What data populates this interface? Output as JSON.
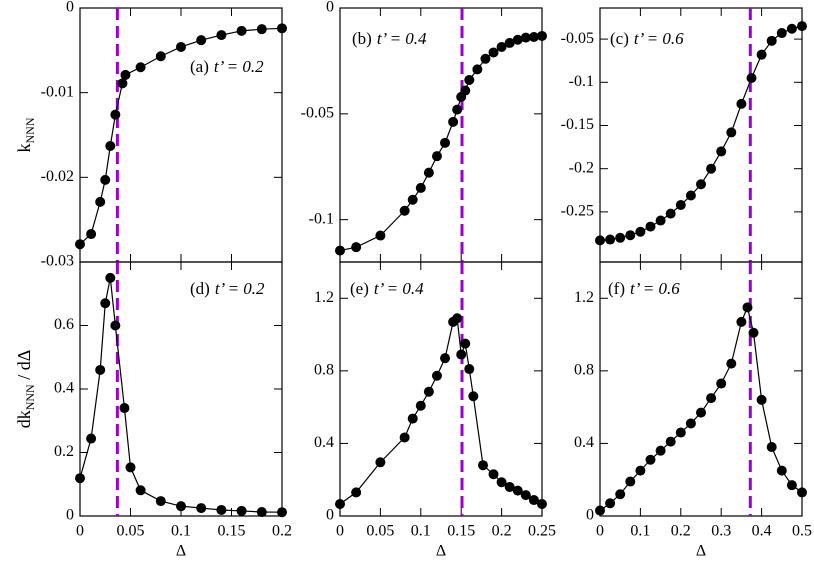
{
  "chart_data": [
    {
      "type": "line",
      "label": "(a)",
      "annotation": "t’ = 0.2",
      "ylabel": [
        "k",
        "NNN"
      ],
      "xlim": [
        0,
        0.2
      ],
      "xticks": [
        0,
        0.05,
        0.1,
        0.15,
        0.2
      ],
      "ylim": [
        -0.03,
        0
      ],
      "yticks": [
        0,
        -0.01,
        -0.02,
        -0.03
      ],
      "vline": 0.037,
      "vline_color": "#9b00d3",
      "x": [
        0,
        0.011,
        0.02,
        0.025,
        0.03,
        0.035,
        0.042,
        0.045,
        0.06,
        0.08,
        0.1,
        0.12,
        0.14,
        0.16,
        0.18,
        0.2
      ],
      "series": [
        {
          "color": "#000000",
          "values": [
            -0.0279,
            -0.0267,
            -0.0229,
            -0.0203,
            -0.0163,
            -0.0126,
            -0.0089,
            -0.0079,
            -0.007,
            -0.0057,
            -0.0046,
            -0.0038,
            -0.0032,
            -0.0027,
            -0.0025,
            -0.0024
          ]
        }
      ]
    },
    {
      "type": "line",
      "label": "(b)",
      "annotation": "t’ = 0.4",
      "xlim": [
        0,
        0.25
      ],
      "xticks": [
        0,
        0.05,
        0.1,
        0.15,
        0.2,
        0.25
      ],
      "ylim": [
        -0.12,
        0
      ],
      "yticks": [
        0,
        -0.05,
        -0.1
      ],
      "vline": 0.151,
      "vline_color": "#9b00d3",
      "x": [
        0,
        0.02,
        0.05,
        0.08,
        0.09,
        0.1,
        0.11,
        0.12,
        0.13,
        0.14,
        0.145,
        0.15,
        0.155,
        0.16,
        0.17,
        0.18,
        0.19,
        0.2,
        0.21,
        0.22,
        0.23,
        0.24,
        0.25
      ],
      "series": [
        {
          "color": "#000000",
          "values": [
            -0.1146,
            -0.113,
            -0.1075,
            -0.0958,
            -0.0906,
            -0.085,
            -0.0778,
            -0.07,
            -0.0637,
            -0.0538,
            -0.048,
            -0.042,
            -0.039,
            -0.034,
            -0.029,
            -0.024,
            -0.021,
            -0.0184,
            -0.0165,
            -0.015,
            -0.014,
            -0.0137,
            -0.0132
          ]
        }
      ]
    },
    {
      "type": "line",
      "label": "(c)",
      "annotation": "t’ = 0.6",
      "xlim": [
        0,
        0.5
      ],
      "xticks": [
        0,
        0.1,
        0.2,
        0.3,
        0.4,
        0.5
      ],
      "ylim": [
        -0.308,
        -0.014
      ],
      "yticks": [
        -0.05,
        -0.1,
        -0.15,
        -0.2,
        -0.25
      ],
      "vline": 0.372,
      "vline_color": "#9b00d3",
      "x": [
        0,
        0.025,
        0.05,
        0.075,
        0.1,
        0.125,
        0.15,
        0.175,
        0.2,
        0.225,
        0.25,
        0.275,
        0.3,
        0.325,
        0.35,
        0.375,
        0.4,
        0.425,
        0.45,
        0.475,
        0.5
      ],
      "series": [
        {
          "color": "#000000",
          "values": [
            -0.283,
            -0.282,
            -0.28,
            -0.277,
            -0.273,
            -0.267,
            -0.26,
            -0.252,
            -0.242,
            -0.231,
            -0.218,
            -0.2,
            -0.18,
            -0.158,
            -0.125,
            -0.095,
            -0.068,
            -0.052,
            -0.043,
            -0.038,
            -0.035
          ]
        }
      ]
    },
    {
      "type": "line",
      "label": "(d)",
      "annotation": "t’ = 0.2",
      "ylabel": [
        "dk",
        "NNN",
        " / dΔ"
      ],
      "xlabel": "Δ",
      "xlim": [
        0,
        0.2
      ],
      "xticks": [
        0,
        0.05,
        0.1,
        0.15,
        0.2
      ],
      "ylim": [
        0,
        0.8
      ],
      "yticks": [
        0,
        0.2,
        0.4,
        0.6
      ],
      "vline": 0.037,
      "vline_color": "#9b00d3",
      "x": [
        0,
        0.011,
        0.02,
        0.025,
        0.03,
        0.035,
        0.044,
        0.05,
        0.06,
        0.08,
        0.1,
        0.12,
        0.14,
        0.16,
        0.18,
        0.2
      ],
      "series": [
        {
          "color": "#000000",
          "values": [
            0.119,
            0.244,
            0.46,
            0.67,
            0.75,
            0.6,
            0.34,
            0.153,
            0.081,
            0.047,
            0.031,
            0.025,
            0.019,
            0.016,
            0.0125,
            0.012
          ]
        }
      ]
    },
    {
      "type": "line",
      "label": "(e)",
      "annotation": "t’ = 0.4",
      "xlabel": "Δ",
      "xlim": [
        0,
        0.25
      ],
      "xticks": [
        0,
        0.05,
        0.1,
        0.15,
        0.2,
        0.25
      ],
      "ylim": [
        0,
        1.4
      ],
      "yticks": [
        0,
        0.4,
        0.8,
        1.2
      ],
      "vline": 0.151,
      "vline_color": "#9b00d3",
      "x": [
        0,
        0.02,
        0.05,
        0.08,
        0.09,
        0.1,
        0.11,
        0.12,
        0.13,
        0.14,
        0.145,
        0.15,
        0.155,
        0.16,
        0.165,
        0.177,
        0.19,
        0.2,
        0.21,
        0.22,
        0.23,
        0.24,
        0.25
      ],
      "series": [
        {
          "color": "#000000",
          "values": [
            0.066,
            0.13,
            0.296,
            0.433,
            0.537,
            0.608,
            0.685,
            0.773,
            0.87,
            1.07,
            1.09,
            0.89,
            0.95,
            0.81,
            0.66,
            0.28,
            0.23,
            0.186,
            0.16,
            0.14,
            0.115,
            0.088,
            0.066
          ]
        }
      ]
    },
    {
      "type": "line",
      "label": "(f)",
      "annotation": "t’ = 0.6",
      "xlabel": "Δ",
      "xlim": [
        0,
        0.5
      ],
      "xticks": [
        0,
        0.1,
        0.2,
        0.3,
        0.4,
        0.5
      ],
      "ylim": [
        0,
        1.4
      ],
      "yticks": [
        0,
        0.4,
        0.8,
        1.2
      ],
      "vline": 0.372,
      "vline_color": "#9b00d3",
      "x": [
        0,
        0.025,
        0.05,
        0.075,
        0.1,
        0.125,
        0.15,
        0.175,
        0.2,
        0.225,
        0.25,
        0.275,
        0.3,
        0.325,
        0.35,
        0.365,
        0.38,
        0.4,
        0.425,
        0.45,
        0.475,
        0.5
      ],
      "series": [
        {
          "color": "#000000",
          "values": [
            0.03,
            0.07,
            0.12,
            0.19,
            0.25,
            0.31,
            0.36,
            0.41,
            0.46,
            0.51,
            0.57,
            0.65,
            0.73,
            0.84,
            1.07,
            1.15,
            1.01,
            0.64,
            0.38,
            0.25,
            0.17,
            0.13
          ]
        }
      ]
    }
  ]
}
